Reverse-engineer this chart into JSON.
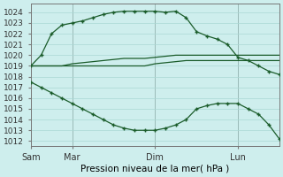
{
  "title": "Pression niveau de la mer( hPa )",
  "ylabel_ticks": [
    1012,
    1013,
    1014,
    1015,
    1016,
    1017,
    1018,
    1019,
    1020,
    1021,
    1022,
    1023,
    1024
  ],
  "ylim": [
    1011.5,
    1024.8
  ],
  "background_color": "#ceeeed",
  "grid_color": "#aad8d4",
  "line_color": "#1a5c2a",
  "series1_x": [
    0,
    1,
    2,
    3,
    4,
    5,
    6,
    7,
    8,
    9,
    10,
    11,
    12,
    13,
    14,
    15,
    16,
    17,
    18,
    19,
    20,
    21,
    22,
    23,
    24
  ],
  "series1_y": [
    1019.0,
    1020.0,
    1022.0,
    1022.8,
    1023.0,
    1023.2,
    1023.5,
    1023.8,
    1024.0,
    1024.1,
    1024.1,
    1024.1,
    1024.1,
    1024.0,
    1024.1,
    1023.5,
    1022.2,
    1021.8,
    1021.5,
    1021.0,
    1019.8,
    1019.5,
    1019.0,
    1018.5,
    1018.2
  ],
  "series2_x": [
    0,
    1,
    2,
    3,
    4,
    5,
    6,
    7,
    8,
    9,
    10,
    11,
    12,
    13,
    14,
    15,
    16,
    17,
    18,
    19,
    20,
    21,
    22,
    23,
    24
  ],
  "series2_y": [
    1019.0,
    1019.0,
    1019.0,
    1019.0,
    1019.0,
    1019.0,
    1019.0,
    1019.0,
    1019.0,
    1019.0,
    1019.0,
    1019.0,
    1019.2,
    1019.3,
    1019.4,
    1019.5,
    1019.5,
    1019.5,
    1019.5,
    1019.5,
    1019.5,
    1019.5,
    1019.5,
    1019.5,
    1019.5
  ],
  "series3_x": [
    0,
    1,
    2,
    3,
    4,
    5,
    6,
    7,
    8,
    9,
    10,
    11,
    12,
    13,
    14,
    15,
    16,
    17,
    18,
    19,
    20,
    21,
    22,
    23,
    24
  ],
  "series3_y": [
    1019.0,
    1019.0,
    1019.0,
    1019.0,
    1019.2,
    1019.3,
    1019.4,
    1019.5,
    1019.6,
    1019.7,
    1019.7,
    1019.7,
    1019.8,
    1019.9,
    1020.0,
    1020.0,
    1020.0,
    1020.0,
    1020.0,
    1020.0,
    1020.0,
    1020.0,
    1020.0,
    1020.0,
    1020.0
  ],
  "series4_x": [
    0,
    1,
    2,
    3,
    4,
    5,
    6,
    7,
    8,
    9,
    10,
    11,
    12,
    13,
    14,
    15,
    16,
    17,
    18,
    19,
    20,
    21,
    22,
    23,
    24
  ],
  "series4_y": [
    1017.5,
    1017.0,
    1016.5,
    1016.0,
    1015.5,
    1015.0,
    1014.5,
    1014.0,
    1013.5,
    1013.2,
    1013.0,
    1013.0,
    1013.0,
    1013.2,
    1013.5,
    1014.0,
    1015.0,
    1015.3,
    1015.5,
    1015.5,
    1015.5,
    1015.0,
    1014.5,
    1013.5,
    1012.2
  ],
  "x_tick_positions": [
    0,
    4,
    12,
    20
  ],
  "x_tick_labels": [
    "Sam",
    "Mar",
    "Dim",
    "Lun"
  ],
  "vline_x": [
    0,
    4,
    12,
    20
  ],
  "xlim": [
    0,
    24
  ],
  "marker_style": "+"
}
